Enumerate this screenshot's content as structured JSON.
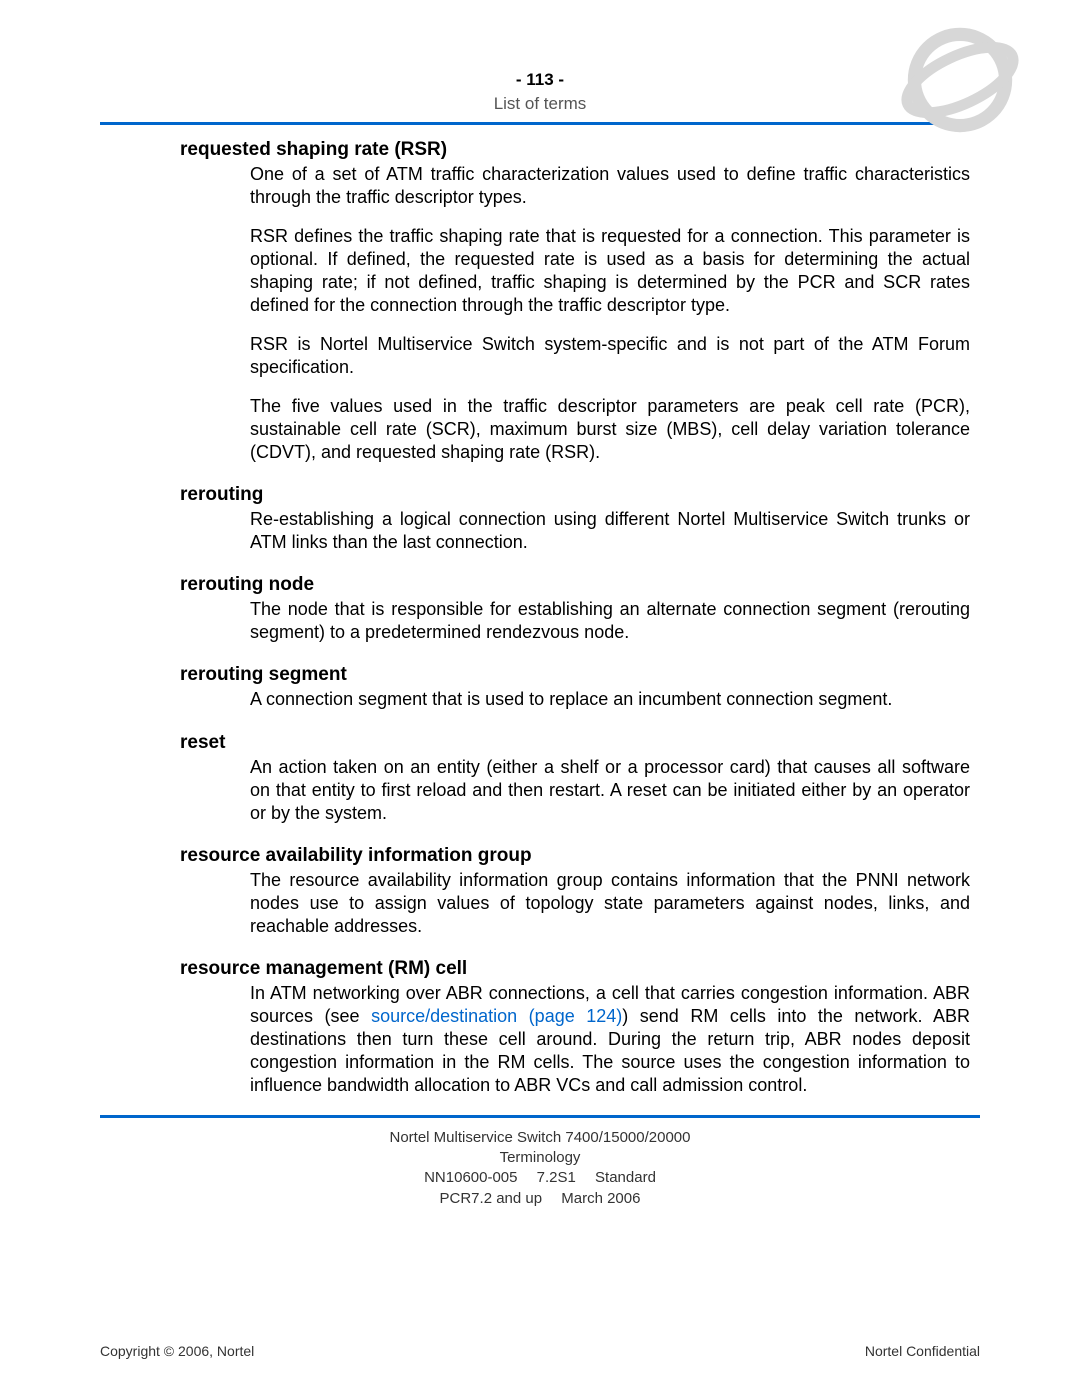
{
  "header": {
    "page_number": "- 113 -",
    "section": "List of terms"
  },
  "terms": [
    {
      "name": "requested shaping rate (RSR)",
      "paragraphs": [
        "One of a set of ATM traffic characterization values used to define traffic characteristics through the traffic descriptor types.",
        "RSR defines the traffic shaping rate that is requested for a connection. This parameter is optional. If defined, the requested rate is used as a basis for determining the actual shaping rate; if not defined, traffic shaping is determined by the PCR and SCR rates defined for the connection through the traffic descriptor type.",
        "RSR is Nortel Multiservice Switch system-specific and is not part of the ATM Forum specification.",
        "The five values used in the traffic descriptor parameters are peak cell rate (PCR), sustainable cell rate (SCR), maximum burst size (MBS), cell delay variation tolerance (CDVT), and requested shaping rate (RSR)."
      ]
    },
    {
      "name": "rerouting",
      "paragraphs": [
        "Re-establishing a logical connection using different Nortel Multiservice Switch trunks or ATM links than the last connection."
      ]
    },
    {
      "name": "rerouting node",
      "paragraphs": [
        "The node that is responsible for establishing an alternate connection segment (rerouting segment) to a predetermined rendezvous node."
      ]
    },
    {
      "name": "rerouting segment",
      "paragraphs": [
        "A connection segment that is used to replace an incumbent connection segment."
      ]
    },
    {
      "name": "reset",
      "paragraphs": [
        "An action taken on an entity (either a shelf or a processor card) that causes all software on that entity to first reload and then restart. A reset can be initiated either by an operator or by the system."
      ]
    },
    {
      "name": "resource availability information group",
      "paragraphs": [
        "The resource availability information group contains information that the PNNI network nodes use to assign values of topology state parameters against nodes, links, and reachable addresses."
      ]
    },
    {
      "name": "resource management (RM) cell",
      "paragraphs_html": [
        "In ATM networking over ABR connections, a cell that carries congestion information. ABR sources (see <span class=\"link\" data-name=\"cross-ref-link\" data-interactable=\"true\">source/destination (page 124)</span>) send RM cells into the network. ABR destinations then turn these cell around. During the return trip, ABR nodes deposit congestion information in the RM cells. The source uses the congestion information to influence bandwidth allocation to ABR VCs and call admission control."
      ]
    }
  ],
  "footer": {
    "line1": "Nortel Multiservice Switch 7400/15000/20000",
    "line2": "Terminology",
    "line3": "NN10600-005  7.2S1  Standard",
    "line4": "PCR7.2 and up  March 2006",
    "copyright": "Copyright © 2006, Nortel",
    "confidential": "Nortel Confidential"
  },
  "link_color": "#0066cc",
  "rule_color": "#0066cc"
}
